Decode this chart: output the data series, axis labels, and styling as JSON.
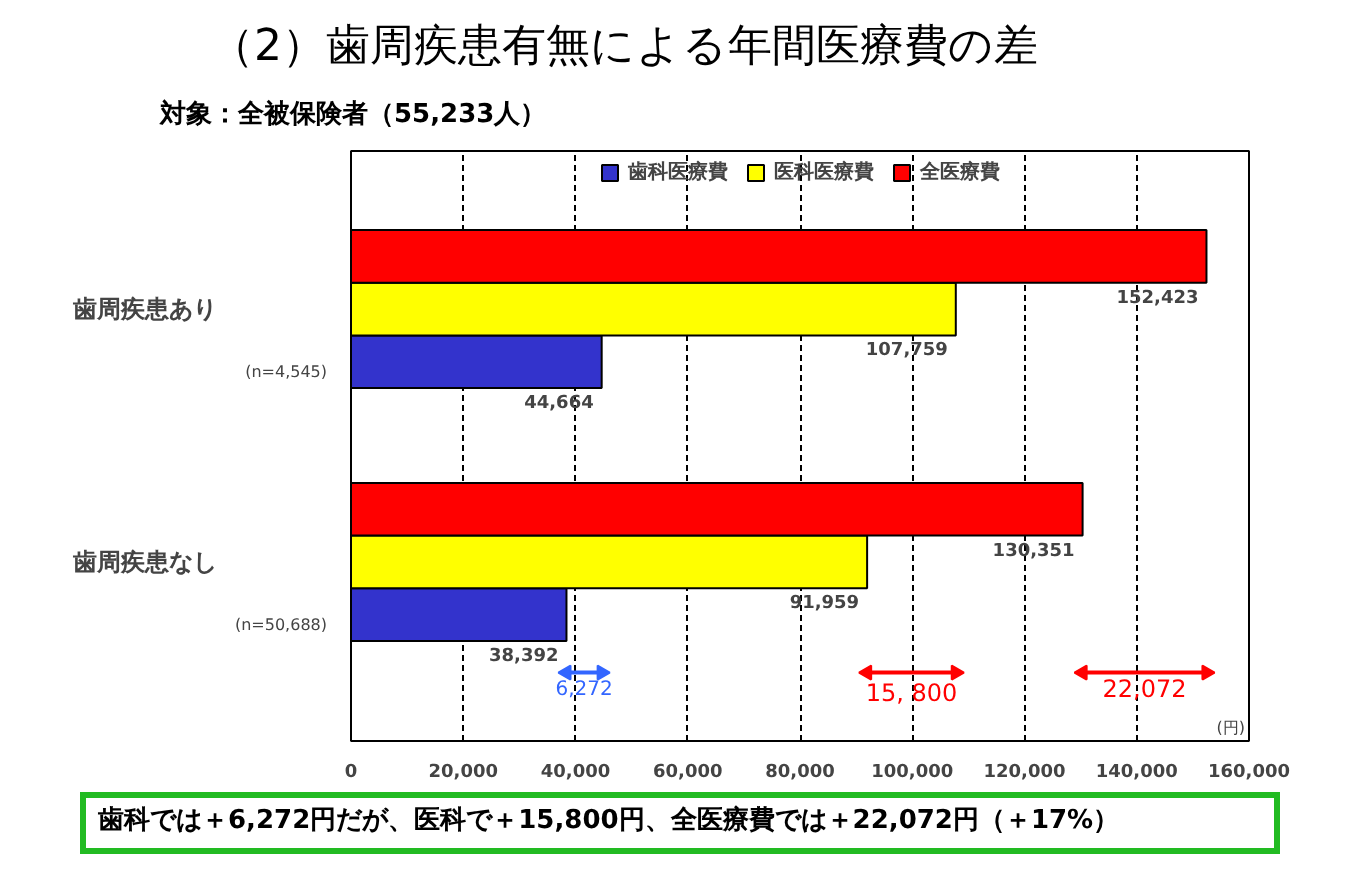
{
  "chart_data": {
    "type": "bar",
    "orientation": "horizontal",
    "title": "（2）歯周疾患有無による年間医療費の差",
    "subtitle": "対象：全被保険者（55,233人）",
    "xlabel": "(円)",
    "categories": [
      "歯周疾患あり",
      "歯周疾患なし"
    ],
    "series": [
      {
        "name": "歯科医療費",
        "color": "#3333cc",
        "values": [
          44664,
          38392
        ],
        "value_labels": [
          "44,664",
          "38,392"
        ]
      },
      {
        "name": "医科医療費",
        "color": "#ffff00",
        "values": [
          107759,
          91959
        ],
        "value_labels": [
          "107,759",
          "91,959"
        ]
      },
      {
        "name": "全医療費",
        "color": "#ff0000",
        "values": [
          152423,
          130351
        ],
        "value_labels": [
          "152,423",
          "130,351"
        ]
      }
    ],
    "xlim": [
      0,
      160000
    ],
    "xticks": [
      0,
      {
        "value": 20000,
        "label": "20,000"
      },
      {
        "value": 40000,
        "label": "40,000"
      },
      {
        "value": 60000,
        "label": "60,000"
      },
      {
        "value": 80000,
        "label": "80,000"
      },
      {
        "value": 100000,
        "label": "100,000"
      },
      {
        "value": 120000,
        "label": "120,000"
      },
      {
        "value": 140000,
        "label": "140,000"
      },
      {
        "value": 160000,
        "label": "160,000"
      }
    ],
    "grid": "x",
    "legend": "top",
    "annotations": [
      "(n=4,545)",
      "(n=50,688)",
      "6,272",
      "15, 800",
      "22,072",
      "歯科では＋6,272円だが、医科で＋15,800円、全医療費では＋22,072円（＋17%）"
    ]
  }
}
